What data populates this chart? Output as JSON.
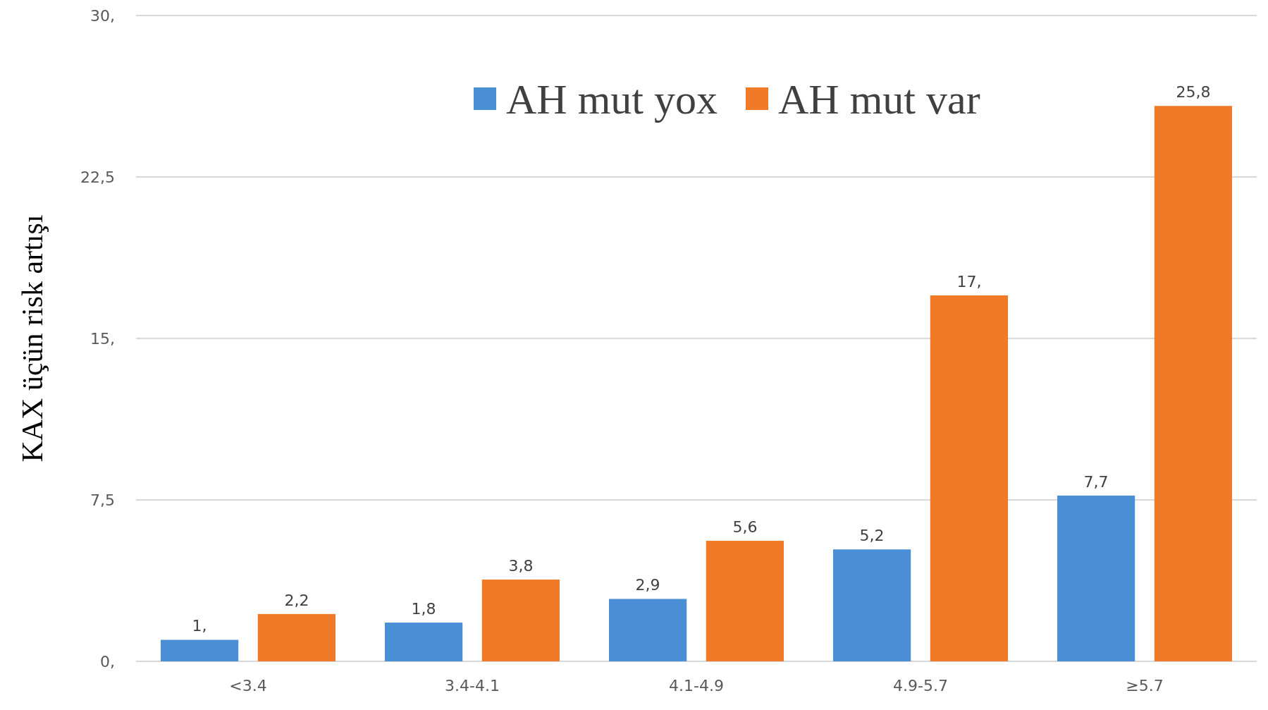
{
  "chart_data": {
    "type": "bar",
    "ylabel": "KAX üçün risk artışı",
    "categories": [
      "<3.4",
      "3.4-4.1",
      "4.1-4.9",
      "4.9-5.7",
      "≥5.7"
    ],
    "series": [
      {
        "name": "AH mut yox",
        "color": "#4a8fd6",
        "values": [
          1,
          1.8,
          2.9,
          5.2,
          7.7
        ],
        "value_labels": [
          "1,",
          "1,8",
          "2,9",
          "5,2",
          "7,7"
        ]
      },
      {
        "name": "AH mut var",
        "color": "#f07a28",
        "values": [
          2.2,
          3.8,
          5.6,
          17,
          25.8
        ],
        "value_labels": [
          "2,2",
          "3,8",
          "5,6",
          "17,",
          "25,8"
        ]
      }
    ],
    "ylim": [
      0,
      30
    ],
    "yticks": [
      {
        "value": 0,
        "label": "0,"
      },
      {
        "value": 7.5,
        "label": "7,5"
      },
      {
        "value": 15,
        "label": "15,"
      },
      {
        "value": 22.5,
        "label": "22,5"
      },
      {
        "value": 30,
        "label": "30,"
      }
    ],
    "grid": "y",
    "legend": "top"
  }
}
